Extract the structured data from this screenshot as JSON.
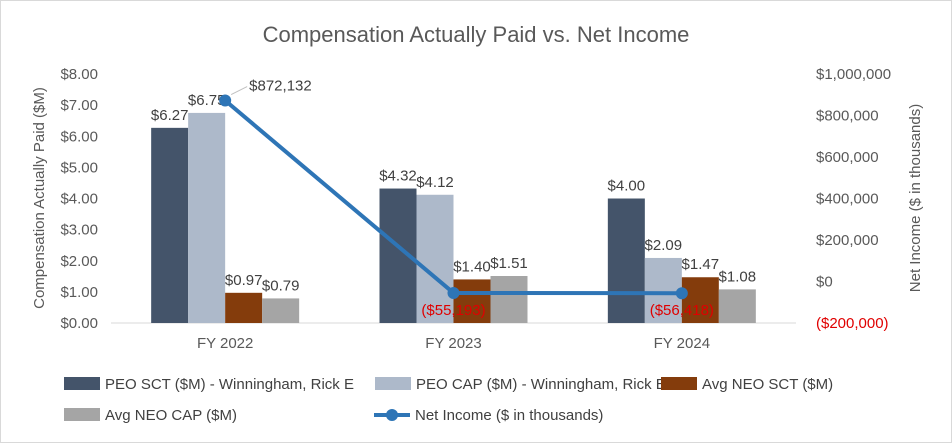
{
  "chart_data": {
    "type": "bar",
    "title": "Compensation Actually Paid vs. Net Income",
    "categories": [
      "FY 2022",
      "FY 2023",
      "FY 2024"
    ],
    "ylabel": "Compensation Actually Paid ($M)",
    "y2label": "Net Income ($ in thousands)",
    "ylim": [
      0,
      8
    ],
    "y_ticks": [
      0,
      1,
      2,
      3,
      4,
      5,
      6,
      7,
      8
    ],
    "y_tick_labels": [
      "$0.00",
      "$1.00",
      "$2.00",
      "$3.00",
      "$4.00",
      "$5.00",
      "$6.00",
      "$7.00",
      "$8.00"
    ],
    "y2lim": [
      -200000,
      1000000
    ],
    "y2_ticks": [
      -200000,
      0,
      200000,
      400000,
      600000,
      800000,
      1000000
    ],
    "y2_tick_labels": [
      "($200,000)",
      "$0",
      "$200,000",
      "$400,000",
      "$600,000",
      "$800,000",
      "$1,000,000"
    ],
    "series": [
      {
        "name": "PEO SCT ($M) - Winningham, Rick E",
        "kind": "bar",
        "color": "#44546a",
        "values": [
          6.27,
          4.32,
          4.0
        ],
        "labels": [
          "$6.27",
          "$4.32",
          "$4.00"
        ]
      },
      {
        "name": "PEO CAP ($M) - Winningham, Rick E",
        "kind": "bar",
        "color": "#adb9ca",
        "values": [
          6.75,
          4.12,
          2.09
        ],
        "labels": [
          "$6.75",
          "$4.12",
          "$2.09"
        ]
      },
      {
        "name": "Avg NEO SCT ($M)",
        "kind": "bar",
        "color": "#843c0c",
        "values": [
          0.97,
          1.4,
          1.47
        ],
        "labels": [
          "$0.97",
          "$1.40",
          "$1.47"
        ]
      },
      {
        "name": "Avg NEO CAP ($M)",
        "kind": "bar",
        "color": "#a5a5a5",
        "values": [
          0.79,
          1.51,
          1.08
        ],
        "labels": [
          "$0.79",
          "$1.51",
          "$1.08"
        ]
      },
      {
        "name": "Net Income ($ in thousands)",
        "kind": "line",
        "axis": "right",
        "color": "#2e75b6",
        "values": [
          872132,
          -55193,
          -56418
        ],
        "labels": [
          "$872,132",
          "($55,193)",
          "($56,418)"
        ]
      }
    ],
    "legend_position": "bottom"
  }
}
